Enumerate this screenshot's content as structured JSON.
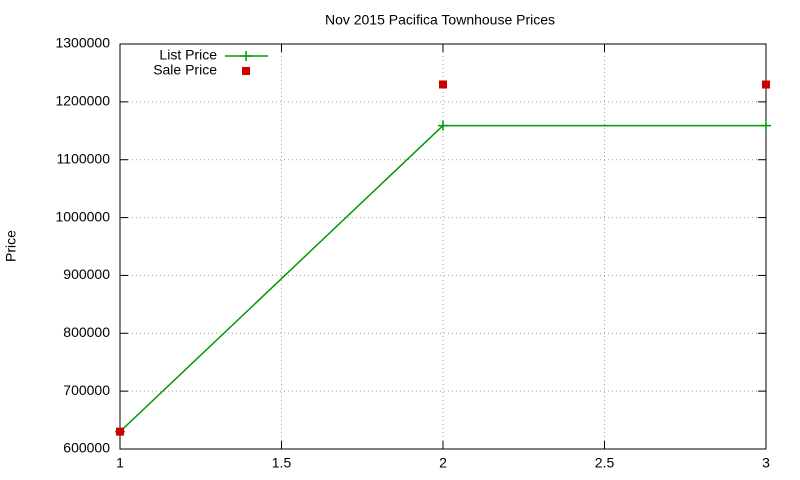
{
  "chart_data": {
    "type": "line",
    "title": "Nov 2015 Pacifica Townhouse Prices",
    "y_label": "Price",
    "x": [
      1,
      2,
      3
    ],
    "series": [
      {
        "name": "List Price",
        "color": "#009900",
        "style": "linespoints",
        "values": [
          630000,
          1159000,
          1159000
        ]
      },
      {
        "name": "Sale Price",
        "color": "#cc0000",
        "style": "points",
        "values": [
          630000,
          1230000,
          1230000
        ]
      }
    ],
    "xlim": [
      1,
      3
    ],
    "xticks": [
      1,
      1.5,
      2,
      2.5,
      3
    ],
    "ylim": [
      600000,
      1300000
    ],
    "yticks": [
      600000,
      700000,
      800000,
      900000,
      1000000,
      1100000,
      1200000,
      1300000
    ],
    "grid": true,
    "legend": "top-left"
  }
}
